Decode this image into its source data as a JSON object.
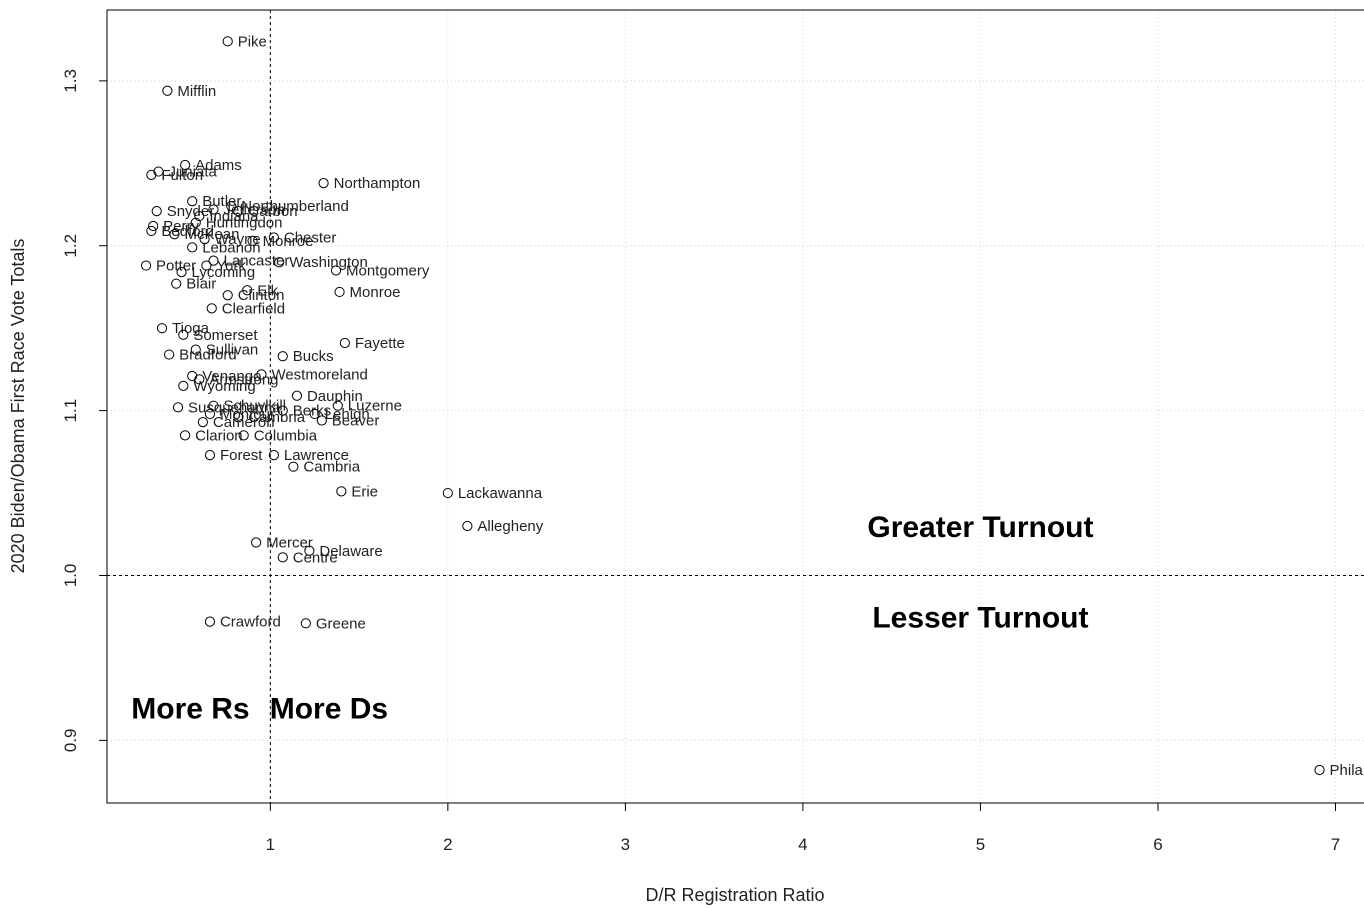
{
  "chart_data": {
    "type": "scatter",
    "xlabel": "D/R Registration Ratio",
    "ylabel": "2020 Biden/Obama First Race Vote Totals",
    "xlim": [
      0.08,
      7.2
    ],
    "ylim": [
      0.862,
      1.343
    ],
    "x_ticks": [
      1,
      2,
      3,
      4,
      5,
      6,
      7
    ],
    "y_ticks": [
      0.9,
      1.0,
      1.1,
      1.2,
      1.3
    ],
    "y_tick_labels": [
      "0.9",
      "1.0",
      "1.1",
      "1.2",
      "1.3"
    ],
    "grid": "dotted",
    "reference_lines": [
      {
        "axis": "x",
        "value": 1,
        "style": "dashed"
      },
      {
        "axis": "y",
        "value": 1.0,
        "style": "dashed"
      }
    ],
    "annotations": [
      {
        "text": "Greater Turnout",
        "x": 5.0,
        "y": 1.03
      },
      {
        "text": "Lesser Turnout",
        "x": 5.0,
        "y": 0.975
      },
      {
        "text": "More Rs",
        "x": 0.55,
        "y": 0.92
      },
      {
        "text": "More Ds",
        "x": 1.33,
        "y": 0.92
      }
    ],
    "points": [
      {
        "label": "Pike",
        "x": 0.76,
        "y": 1.324
      },
      {
        "label": "Mifflin",
        "x": 0.42,
        "y": 1.294
      },
      {
        "label": "Adams",
        "x": 0.52,
        "y": 1.249
      },
      {
        "label": "Juniata",
        "x": 0.37,
        "y": 1.245
      },
      {
        "label": "Fulton",
        "x": 0.33,
        "y": 1.243
      },
      {
        "label": "Northampton",
        "x": 1.3,
        "y": 1.238
      },
      {
        "label": "Butler",
        "x": 0.56,
        "y": 1.227
      },
      {
        "label": "Northumberland",
        "x": 0.78,
        "y": 1.224
      },
      {
        "label": "Jefferson",
        "x": 0.68,
        "y": 1.222
      },
      {
        "label": "Carbon",
        "x": 0.82,
        "y": 1.221
      },
      {
        "label": "Snyder",
        "x": 0.36,
        "y": 1.221
      },
      {
        "label": "Indiana",
        "x": 0.6,
        "y": 1.218
      },
      {
        "label": "Huntingdon",
        "x": 0.58,
        "y": 1.214
      },
      {
        "label": "Perry",
        "x": 0.34,
        "y": 1.212
      },
      {
        "label": "Bedford",
        "x": 0.33,
        "y": 1.209
      },
      {
        "label": "McKean",
        "x": 0.46,
        "y": 1.207
      },
      {
        "label": "Chester",
        "x": 1.02,
        "y": 1.205
      },
      {
        "label": "Wayne",
        "x": 0.63,
        "y": 1.204
      },
      {
        "label": "Monroe",
        "x": 0.9,
        "y": 1.203
      },
      {
        "label": "Lebanon",
        "x": 0.56,
        "y": 1.199
      },
      {
        "label": "Lancaster",
        "x": 0.68,
        "y": 1.191
      },
      {
        "label": "Washington",
        "x": 1.05,
        "y": 1.19
      },
      {
        "label": "Potter",
        "x": 0.3,
        "y": 1.188
      },
      {
        "label": "York",
        "x": 0.64,
        "y": 1.188
      },
      {
        "label": "Montgomery",
        "x": 1.37,
        "y": 1.185
      },
      {
        "label": "Lycoming",
        "x": 0.5,
        "y": 1.184
      },
      {
        "label": "Blair",
        "x": 0.47,
        "y": 1.177
      },
      {
        "label": "Elk",
        "x": 0.87,
        "y": 1.173
      },
      {
        "label": "Monroe",
        "x": 1.39,
        "y": 1.172
      },
      {
        "label": "Clinton",
        "x": 0.76,
        "y": 1.17
      },
      {
        "label": "Clearfield",
        "x": 0.67,
        "y": 1.162
      },
      {
        "label": "Tioga",
        "x": 0.39,
        "y": 1.15
      },
      {
        "label": "Somerset",
        "x": 0.51,
        "y": 1.146
      },
      {
        "label": "Fayette",
        "x": 1.42,
        "y": 1.141
      },
      {
        "label": "Sullivan",
        "x": 0.58,
        "y": 1.137
      },
      {
        "label": "Bradford",
        "x": 0.43,
        "y": 1.134
      },
      {
        "label": "Bucks",
        "x": 1.07,
        "y": 1.133
      },
      {
        "label": "Westmoreland",
        "x": 0.95,
        "y": 1.122
      },
      {
        "label": "Venango",
        "x": 0.56,
        "y": 1.121
      },
      {
        "label": "Armstrong",
        "x": 0.6,
        "y": 1.119
      },
      {
        "label": "Wyoming",
        "x": 0.51,
        "y": 1.115
      },
      {
        "label": "Dauphin",
        "x": 1.15,
        "y": 1.109
      },
      {
        "label": "Luzerne",
        "x": 1.38,
        "y": 1.103
      },
      {
        "label": "Schuylkill",
        "x": 0.68,
        "y": 1.103
      },
      {
        "label": "Susquehanna",
        "x": 0.48,
        "y": 1.102
      },
      {
        "label": "Berks",
        "x": 1.07,
        "y": 1.1
      },
      {
        "label": "Lehigh",
        "x": 1.25,
        "y": 1.098
      },
      {
        "label": "Montour",
        "x": 0.66,
        "y": 1.098
      },
      {
        "label": "Cambria",
        "x": 0.82,
        "y": 1.096
      },
      {
        "label": "Beaver",
        "x": 1.29,
        "y": 1.094
      },
      {
        "label": "Cameron",
        "x": 0.62,
        "y": 1.093
      },
      {
        "label": "Clarion",
        "x": 0.52,
        "y": 1.085
      },
      {
        "label": "Columbia",
        "x": 0.85,
        "y": 1.085
      },
      {
        "label": "Forest",
        "x": 0.66,
        "y": 1.073
      },
      {
        "label": "Lawrence",
        "x": 1.02,
        "y": 1.073
      },
      {
        "label": "Cambria",
        "x": 1.13,
        "y": 1.066
      },
      {
        "label": "Erie",
        "x": 1.4,
        "y": 1.051
      },
      {
        "label": "Lackawanna",
        "x": 2.0,
        "y": 1.05
      },
      {
        "label": "Allegheny",
        "x": 2.11,
        "y": 1.03
      },
      {
        "label": "Mercer",
        "x": 0.92,
        "y": 1.02
      },
      {
        "label": "Delaware",
        "x": 1.22,
        "y": 1.015
      },
      {
        "label": "Centre",
        "x": 1.07,
        "y": 1.011
      },
      {
        "label": "Crawford",
        "x": 0.66,
        "y": 0.972
      },
      {
        "label": "Greene",
        "x": 1.2,
        "y": 0.971
      },
      {
        "label": "Phila",
        "x": 6.91,
        "y": 0.882
      }
    ]
  }
}
